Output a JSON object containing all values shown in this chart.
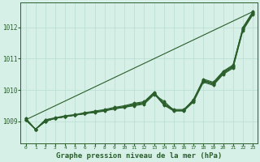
{
  "title": "Graphe pression niveau de la mer (hPa)",
  "title_fontsize": 6.5,
  "bg_color": "#d6f0e8",
  "grid_color": "#b8ddd0",
  "line_color": "#2a5e2a",
  "xlim": [
    -0.5,
    23.5
  ],
  "ylim": [
    1008.3,
    1012.8
  ],
  "yticks": [
    1009,
    1010,
    1011,
    1012
  ],
  "xticks": [
    0,
    1,
    2,
    3,
    4,
    5,
    6,
    7,
    8,
    9,
    10,
    11,
    12,
    13,
    14,
    15,
    16,
    17,
    18,
    19,
    20,
    21,
    22,
    23
  ],
  "series": [
    [
      1009.1,
      1008.75,
      1009.05,
      1009.1,
      1009.15,
      1009.2,
      1009.25,
      1009.3,
      1009.35,
      1009.4,
      1009.45,
      1009.5,
      1009.55,
      1009.85,
      1009.65,
      1009.35,
      1009.35,
      1009.7,
      1010.35,
      1010.25,
      1010.6,
      1010.8,
      1012.0,
      1012.5
    ],
    [
      1009.05,
      1008.75,
      1009.0,
      1009.1,
      1009.15,
      1009.2,
      1009.25,
      1009.3,
      1009.35,
      1009.42,
      1009.47,
      1009.55,
      1009.6,
      1009.9,
      1009.55,
      1009.35,
      1009.35,
      1009.7,
      1010.3,
      1010.2,
      1010.55,
      1010.75,
      1011.95,
      1012.45
    ],
    [
      1009.05,
      1008.75,
      1009.0,
      1009.1,
      1009.15,
      1009.2,
      1009.25,
      1009.3,
      1009.35,
      1009.42,
      1009.47,
      1009.55,
      1009.6,
      1009.9,
      1009.55,
      1009.35,
      1009.35,
      1009.65,
      1010.28,
      1010.18,
      1010.53,
      1010.73,
      1011.93,
      1012.43
    ],
    [
      1009.05,
      1008.75,
      1009.0,
      1009.1,
      1009.15,
      1009.2,
      1009.25,
      1009.28,
      1009.33,
      1009.4,
      1009.45,
      1009.52,
      1009.58,
      1009.88,
      1009.52,
      1009.33,
      1009.33,
      1009.62,
      1010.25,
      1010.15,
      1010.5,
      1010.7,
      1011.9,
      1012.4
    ],
    [
      1009.1,
      1008.75,
      1009.05,
      1009.12,
      1009.18,
      1009.22,
      1009.28,
      1009.33,
      1009.38,
      1009.45,
      1009.5,
      1009.58,
      1009.63,
      1009.93,
      1009.58,
      1009.38,
      1009.38,
      1009.68,
      1010.32,
      1010.22,
      1010.57,
      1010.78,
      1011.98,
      1012.48
    ]
  ],
  "straight_line": [
    1009.05,
    1012.5
  ]
}
